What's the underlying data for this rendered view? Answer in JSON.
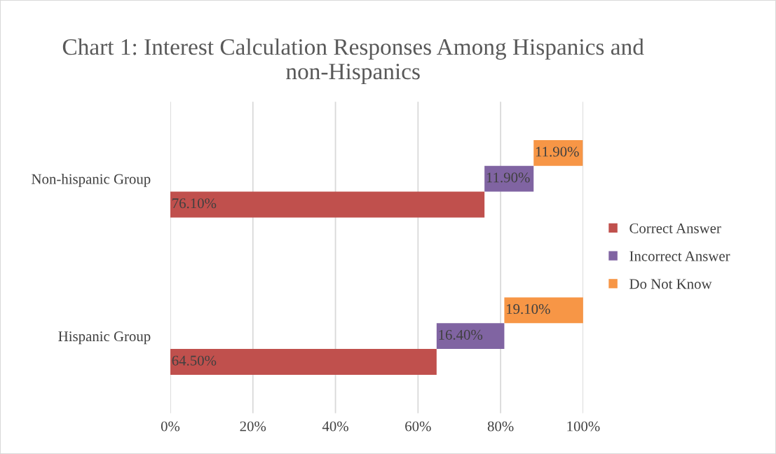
{
  "chart_data": {
    "type": "bar",
    "orientation": "horizontal",
    "title": "Chart 1: Interest Calculation Responses Among Hispanics and non-Hispanics",
    "categories": [
      "Non-hispanic Group",
      "Hispanic Group"
    ],
    "series": [
      {
        "name": "Correct Answer",
        "color": "#c0504d",
        "values": [
          76.1,
          64.5
        ],
        "base": [
          0,
          0
        ],
        "value_labels": [
          "76.10%",
          "64.50%"
        ]
      },
      {
        "name": "Incorrect Answer",
        "color": "#8064a2",
        "values": [
          11.9,
          16.4
        ],
        "base": [
          76.1,
          64.5
        ],
        "value_labels": [
          "11.90%",
          "16.40%"
        ]
      },
      {
        "name": "Do Not Know",
        "color": "#f79646",
        "values": [
          11.9,
          19.1
        ],
        "base": [
          88.0,
          80.9
        ],
        "value_labels": [
          "11.90%",
          "19.10%"
        ]
      }
    ],
    "xlim": [
      0,
      100
    ],
    "xticks": [
      {
        "value": 0,
        "label": "0%"
      },
      {
        "value": 20,
        "label": "20%"
      },
      {
        "value": 40,
        "label": "40%"
      },
      {
        "value": 60,
        "label": "60%"
      },
      {
        "value": 80,
        "label": "80%"
      },
      {
        "value": 100,
        "label": "100%"
      }
    ],
    "grid": "x",
    "legend": "right"
  }
}
